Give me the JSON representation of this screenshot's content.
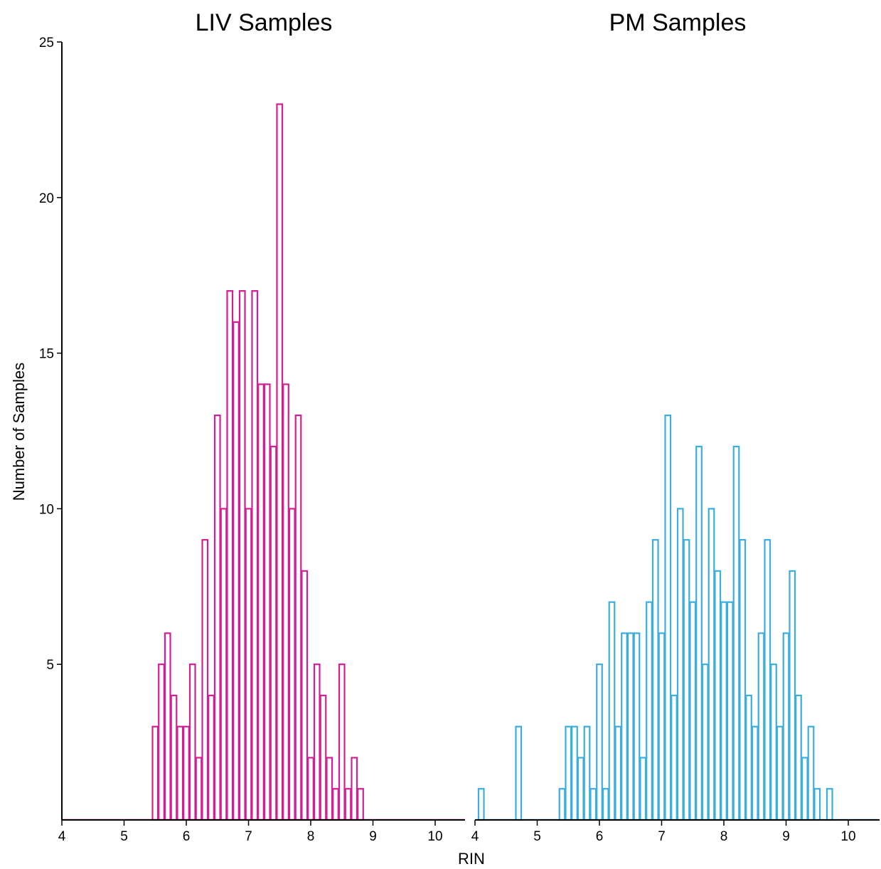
{
  "chart_data": {
    "type": "bar",
    "xlabel": "RIN",
    "ylabel": "Number of Samples",
    "ylim": [
      0,
      25
    ],
    "yticks": [
      5,
      10,
      15,
      20,
      25
    ],
    "xticks": [
      4,
      5,
      6,
      7,
      8,
      9,
      10
    ],
    "xlim": [
      4,
      10.5
    ],
    "bin_width": 0.1,
    "grid": false,
    "panels": [
      {
        "title": "LIV Samples",
        "color": "#d41e95",
        "bins": [
          {
            "x": 5.5,
            "y": 3
          },
          {
            "x": 5.6,
            "y": 5
          },
          {
            "x": 5.7,
            "y": 6
          },
          {
            "x": 5.8,
            "y": 4
          },
          {
            "x": 5.9,
            "y": 3
          },
          {
            "x": 6.0,
            "y": 3
          },
          {
            "x": 6.1,
            "y": 5
          },
          {
            "x": 6.2,
            "y": 2
          },
          {
            "x": 6.3,
            "y": 9
          },
          {
            "x": 6.4,
            "y": 4
          },
          {
            "x": 6.5,
            "y": 13
          },
          {
            "x": 6.6,
            "y": 10
          },
          {
            "x": 6.7,
            "y": 17
          },
          {
            "x": 6.8,
            "y": 16
          },
          {
            "x": 6.9,
            "y": 17
          },
          {
            "x": 7.0,
            "y": 10
          },
          {
            "x": 7.1,
            "y": 17
          },
          {
            "x": 7.2,
            "y": 14
          },
          {
            "x": 7.3,
            "y": 14
          },
          {
            "x": 7.4,
            "y": 12
          },
          {
            "x": 7.5,
            "y": 23
          },
          {
            "x": 7.6,
            "y": 14
          },
          {
            "x": 7.7,
            "y": 10
          },
          {
            "x": 7.8,
            "y": 13
          },
          {
            "x": 7.9,
            "y": 8
          },
          {
            "x": 8.0,
            "y": 2
          },
          {
            "x": 8.1,
            "y": 5
          },
          {
            "x": 8.2,
            "y": 4
          },
          {
            "x": 8.3,
            "y": 2
          },
          {
            "x": 8.4,
            "y": 1
          },
          {
            "x": 8.5,
            "y": 5
          },
          {
            "x": 8.6,
            "y": 1
          },
          {
            "x": 8.7,
            "y": 2
          },
          {
            "x": 8.8,
            "y": 1
          }
        ]
      },
      {
        "title": "PM Samples",
        "color": "#3aaede",
        "bins": [
          {
            "x": 4.1,
            "y": 1
          },
          {
            "x": 4.7,
            "y": 3
          },
          {
            "x": 5.4,
            "y": 1
          },
          {
            "x": 5.5,
            "y": 3
          },
          {
            "x": 5.6,
            "y": 3
          },
          {
            "x": 5.7,
            "y": 2
          },
          {
            "x": 5.8,
            "y": 3
          },
          {
            "x": 5.9,
            "y": 1
          },
          {
            "x": 6.0,
            "y": 5
          },
          {
            "x": 6.1,
            "y": 1
          },
          {
            "x": 6.2,
            "y": 7
          },
          {
            "x": 6.3,
            "y": 3
          },
          {
            "x": 6.4,
            "y": 6
          },
          {
            "x": 6.5,
            "y": 6
          },
          {
            "x": 6.6,
            "y": 6
          },
          {
            "x": 6.7,
            "y": 2
          },
          {
            "x": 6.8,
            "y": 7
          },
          {
            "x": 6.9,
            "y": 9
          },
          {
            "x": 7.0,
            "y": 6
          },
          {
            "x": 7.1,
            "y": 13
          },
          {
            "x": 7.2,
            "y": 4
          },
          {
            "x": 7.3,
            "y": 10
          },
          {
            "x": 7.4,
            "y": 9
          },
          {
            "x": 7.5,
            "y": 7
          },
          {
            "x": 7.6,
            "y": 12
          },
          {
            "x": 7.7,
            "y": 5
          },
          {
            "x": 7.8,
            "y": 10
          },
          {
            "x": 7.9,
            "y": 8
          },
          {
            "x": 8.0,
            "y": 7
          },
          {
            "x": 8.1,
            "y": 7
          },
          {
            "x": 8.2,
            "y": 12
          },
          {
            "x": 8.3,
            "y": 9
          },
          {
            "x": 8.4,
            "y": 4
          },
          {
            "x": 8.5,
            "y": 3
          },
          {
            "x": 8.6,
            "y": 6
          },
          {
            "x": 8.7,
            "y": 9
          },
          {
            "x": 8.8,
            "y": 5
          },
          {
            "x": 8.9,
            "y": 3
          },
          {
            "x": 9.0,
            "y": 6
          },
          {
            "x": 9.1,
            "y": 8
          },
          {
            "x": 9.2,
            "y": 4
          },
          {
            "x": 9.3,
            "y": 2
          },
          {
            "x": 9.4,
            "y": 3
          },
          {
            "x": 9.5,
            "y": 1
          },
          {
            "x": 9.7,
            "y": 1
          }
        ]
      }
    ]
  }
}
